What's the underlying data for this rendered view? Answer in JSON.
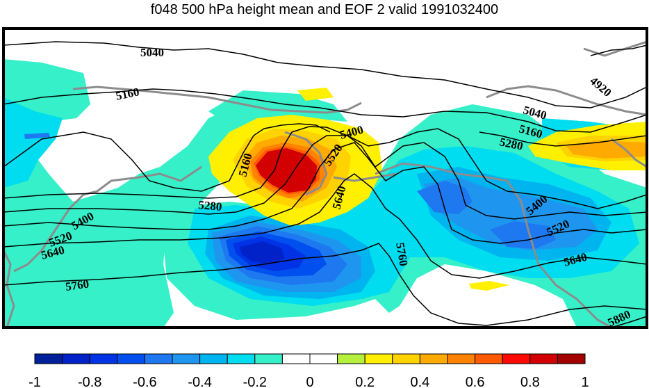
{
  "chart_data": {
    "type": "heatmap",
    "title": "f048 500 hPa height mean and EOF 2 valid 1991032400",
    "colorbar": {
      "ticks": [
        "-1",
        "-0.8",
        "-0.6",
        "-0.4",
        "-0.2",
        "0",
        "0.2",
        "0.4",
        "0.6",
        "0.8",
        "1"
      ],
      "bins": [
        {
          "from": -1.0,
          "to": -0.9,
          "color": "#00209a"
        },
        {
          "from": -0.9,
          "to": -0.8,
          "color": "#0022c8"
        },
        {
          "from": -0.8,
          "to": -0.7,
          "color": "#0033e6"
        },
        {
          "from": -0.7,
          "to": -0.6,
          "color": "#0050f0"
        },
        {
          "from": -0.6,
          "to": -0.5,
          "color": "#1e78f0"
        },
        {
          "from": -0.5,
          "to": -0.4,
          "color": "#1e96f0"
        },
        {
          "from": -0.4,
          "to": -0.3,
          "color": "#00b4f0"
        },
        {
          "from": -0.3,
          "to": -0.2,
          "color": "#00dcf0"
        },
        {
          "from": -0.2,
          "to": -0.1,
          "color": "#35f0c8"
        },
        {
          "from": -0.1,
          "to": 0.0,
          "color": "#ffffff"
        },
        {
          "from": 0.0,
          "to": 0.1,
          "color": "#ffffff"
        },
        {
          "from": 0.1,
          "to": 0.2,
          "color": "#b4f03c"
        },
        {
          "from": 0.2,
          "to": 0.3,
          "color": "#fff000"
        },
        {
          "from": 0.3,
          "to": 0.4,
          "color": "#ffd200"
        },
        {
          "from": 0.4,
          "to": 0.5,
          "color": "#ffaa00"
        },
        {
          "from": 0.5,
          "to": 0.6,
          "color": "#ff8200"
        },
        {
          "from": 0.6,
          "to": 0.7,
          "color": "#ff5a00"
        },
        {
          "from": 0.7,
          "to": 0.8,
          "color": "#ff0a00"
        },
        {
          "from": 0.8,
          "to": 0.9,
          "color": "#d20000"
        },
        {
          "from": 0.9,
          "to": 1.0,
          "color": "#a50000"
        }
      ]
    },
    "contour_labels": [
      "5040",
      "4920",
      "5160",
      "5040",
      "5160",
      "5280",
      "5400",
      "5520",
      "5640",
      "5160",
      "5280",
      "5400",
      "5520",
      "5640",
      "5760",
      "5400",
      "5520",
      "5640",
      "5760",
      "5880"
    ],
    "colors": {
      "land_outline": "#8c8c8c",
      "contour": "#000000",
      "frame": "#000000"
    }
  }
}
